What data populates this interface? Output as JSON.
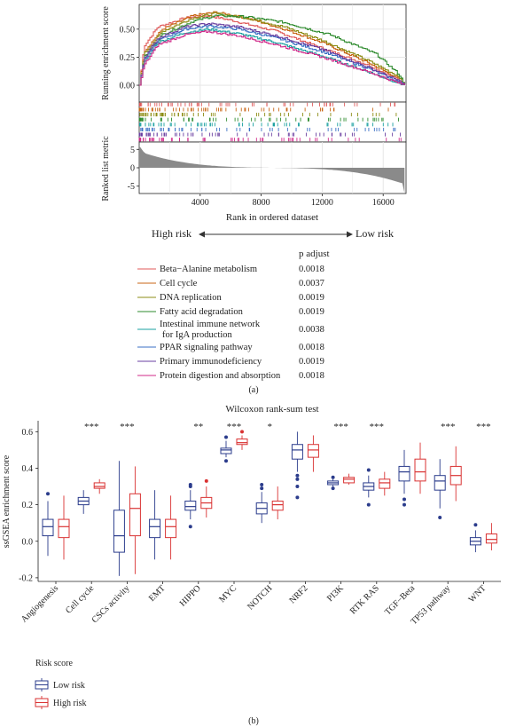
{
  "panel_a": {
    "caption": "(a)",
    "high_risk_label": "High risk",
    "low_risk_label": "Low risk",
    "legend_header": "p adjust",
    "colors": {
      "high": "#d42a2a",
      "low": "#3a6fc4",
      "arrow": "#333333",
      "bar": "#8a8a8a"
    },
    "chart_data": [
      {
        "type": "line",
        "ylabel": "Running enrichment score",
        "yticks": [
          0.0,
          0.25,
          0.5
        ],
        "ylim": [
          -0.15,
          0.72
        ],
        "xlim": [
          0,
          17500
        ],
        "grid": true,
        "series": [
          {
            "name": "Beta−Alanine metabolism",
            "color": "#e05a5a",
            "x": [
              0,
              300,
              1200,
              3000,
              4500,
              6000,
              9000,
              12000,
              15000,
              17000,
              17400
            ],
            "y": [
              0.0,
              0.35,
              0.52,
              0.6,
              0.62,
              0.58,
              0.48,
              0.33,
              0.18,
              0.05,
              0.0
            ]
          },
          {
            "name": "Cell cycle",
            "color": "#c86414",
            "x": [
              0,
              300,
              1500,
              3500,
              5000,
              7000,
              9500,
              12000,
              15000,
              17000,
              17400
            ],
            "y": [
              0.0,
              0.3,
              0.5,
              0.62,
              0.65,
              0.6,
              0.5,
              0.38,
              0.2,
              0.06,
              0.0
            ]
          },
          {
            "name": "DNA replication",
            "color": "#8c8c14",
            "x": [
              0,
              300,
              1500,
              3500,
              5000,
              7000,
              9500,
              12000,
              15000,
              17000,
              17400
            ],
            "y": [
              0.0,
              0.28,
              0.48,
              0.6,
              0.64,
              0.6,
              0.52,
              0.4,
              0.22,
              0.08,
              0.0
            ]
          },
          {
            "name": "Fatty acid degradation",
            "color": "#2e8b2e",
            "x": [
              0,
              300,
              1500,
              3500,
              5000,
              7000,
              9500,
              12500,
              15500,
              17000,
              17400
            ],
            "y": [
              0.0,
              0.25,
              0.45,
              0.57,
              0.62,
              0.61,
              0.56,
              0.45,
              0.28,
              0.1,
              0.0
            ]
          },
          {
            "name": "Intestinal immune network for IgA production",
            "color": "#1aa0a0",
            "x": [
              0,
              300,
              1200,
              3000,
              4500,
              6500,
              9000,
              12000,
              15000,
              17000,
              17400
            ],
            "y": [
              0.0,
              0.2,
              0.38,
              0.47,
              0.5,
              0.46,
              0.38,
              0.26,
              0.12,
              0.02,
              0.0
            ]
          },
          {
            "name": "PPAR signaling pathway",
            "color": "#3a6fc4",
            "x": [
              0,
              300,
              1200,
              3000,
              4500,
              6500,
              9000,
              12000,
              15000,
              17000,
              17400
            ],
            "y": [
              0.0,
              0.22,
              0.4,
              0.5,
              0.53,
              0.5,
              0.42,
              0.3,
              0.15,
              0.03,
              0.0
            ]
          },
          {
            "name": "Primary immunodeficiency",
            "color": "#6a3fa0",
            "x": [
              0,
              300,
              1200,
              3000,
              4500,
              6500,
              9000,
              12000,
              15000,
              17000,
              17400
            ],
            "y": [
              0.0,
              0.24,
              0.42,
              0.52,
              0.55,
              0.52,
              0.44,
              0.32,
              0.16,
              0.04,
              0.0
            ]
          },
          {
            "name": "Protein digestion and absorption",
            "color": "#d02a8a",
            "x": [
              0,
              300,
              1200,
              3000,
              4500,
              6500,
              9000,
              12000,
              15000,
              17000,
              17400
            ],
            "y": [
              0.0,
              0.18,
              0.36,
              0.45,
              0.48,
              0.44,
              0.36,
              0.25,
              0.12,
              0.02,
              0.0
            ]
          }
        ]
      },
      {
        "type": "area",
        "xlabel": "Rank in ordered dataset",
        "ylabel": "Ranked list metric",
        "xticks": [
          4000,
          8000,
          12000,
          16000
        ],
        "yticks": [
          5,
          0,
          -5
        ],
        "ylim": [
          -7,
          7
        ],
        "xlim": [
          0,
          17500
        ]
      }
    ],
    "legend": [
      {
        "name": "Beta−Alanine metabolism",
        "padj": "0.0018"
      },
      {
        "name": "Cell cycle",
        "padj": "0.0037"
      },
      {
        "name": "DNA replication",
        "padj": "0.0019"
      },
      {
        "name": "Fatty acid degradation",
        "padj": "0.0019"
      },
      {
        "name": "Intestinal immune network",
        "name2": "for IgA production",
        "padj": "0.0038"
      },
      {
        "name": "PPAR signaling pathway",
        "padj": "0.0018"
      },
      {
        "name": "Primary immunodeficiency",
        "padj": "0.0019"
      },
      {
        "name": "Protein digestion and absorption",
        "padj": "0.0018"
      }
    ]
  },
  "panel_b": {
    "caption": "(b)",
    "legend_title": "Risk score",
    "chart_data": {
      "type": "box",
      "title": "Wilcoxon rank-sum test",
      "ylabel": "ssGSEA enrichment score",
      "ylim": [
        -0.22,
        0.66
      ],
      "yticks": [
        -0.2,
        0.0,
        0.2,
        0.4,
        0.6
      ],
      "categories": [
        "Angiogenesis",
        "Cell cycle",
        "CSCs activity",
        "EMT",
        "HIPPO",
        "MYC",
        "NOTCH",
        "NRF2",
        "PI3K",
        "RTK RAS",
        "TGF−Beta",
        "TP53 pathway",
        "WNT"
      ],
      "significance": [
        "",
        "***",
        "***",
        "",
        "**",
        "***",
        "*",
        "",
        "***",
        "***",
        "",
        "***",
        "***"
      ],
      "series": [
        {
          "name": "Low risk",
          "color": "#2b3c8c",
          "boxes": [
            {
              "min": -0.08,
              "q1": 0.03,
              "median": 0.08,
              "q3": 0.12,
              "max": 0.22,
              "outliers": [
                0.26
              ]
            },
            {
              "min": 0.15,
              "q1": 0.2,
              "median": 0.22,
              "q3": 0.24,
              "max": 0.28,
              "outliers": []
            },
            {
              "min": -0.19,
              "q1": -0.06,
              "median": 0.03,
              "q3": 0.17,
              "max": 0.44,
              "outliers": []
            },
            {
              "min": -0.1,
              "q1": 0.02,
              "median": 0.08,
              "q3": 0.12,
              "max": 0.28,
              "outliers": []
            },
            {
              "min": 0.12,
              "q1": 0.17,
              "median": 0.19,
              "q3": 0.22,
              "max": 0.28,
              "outliers": [
                0.08,
                0.3,
                0.31
              ]
            },
            {
              "min": 0.46,
              "q1": 0.48,
              "median": 0.5,
              "q3": 0.51,
              "max": 0.55,
              "outliers": [
                0.44,
                0.57
              ]
            },
            {
              "min": 0.1,
              "q1": 0.15,
              "median": 0.18,
              "q3": 0.21,
              "max": 0.27,
              "outliers": [
                0.29,
                0.31
              ]
            },
            {
              "min": 0.38,
              "q1": 0.45,
              "median": 0.5,
              "q3": 0.53,
              "max": 0.6,
              "outliers": [
                0.24,
                0.3,
                0.34,
                0.36
              ]
            },
            {
              "min": 0.3,
              "q1": 0.31,
              "median": 0.32,
              "q3": 0.33,
              "max": 0.34,
              "outliers": [
                0.29,
                0.35
              ]
            },
            {
              "min": 0.24,
              "q1": 0.28,
              "median": 0.3,
              "q3": 0.32,
              "max": 0.36,
              "outliers": [
                0.2,
                0.39
              ]
            },
            {
              "min": 0.26,
              "q1": 0.33,
              "median": 0.38,
              "q3": 0.41,
              "max": 0.5,
              "outliers": [
                0.2,
                0.23
              ]
            },
            {
              "min": 0.18,
              "q1": 0.28,
              "median": 0.33,
              "q3": 0.36,
              "max": 0.45,
              "outliers": [
                0.13
              ]
            },
            {
              "min": -0.06,
              "q1": -0.02,
              "median": 0.0,
              "q3": 0.02,
              "max": 0.06,
              "outliers": [
                0.09
              ]
            }
          ]
        },
        {
          "name": "High risk",
          "color": "#d93232",
          "boxes": [
            {
              "min": -0.1,
              "q1": 0.02,
              "median": 0.08,
              "q3": 0.12,
              "max": 0.25,
              "outliers": []
            },
            {
              "min": 0.26,
              "q1": 0.29,
              "median": 0.3,
              "q3": 0.32,
              "max": 0.34,
              "outliers": []
            },
            {
              "min": -0.18,
              "q1": 0.03,
              "median": 0.18,
              "q3": 0.26,
              "max": 0.41,
              "outliers": []
            },
            {
              "min": -0.1,
              "q1": 0.02,
              "median": 0.08,
              "q3": 0.12,
              "max": 0.25,
              "outliers": []
            },
            {
              "min": 0.13,
              "q1": 0.18,
              "median": 0.21,
              "q3": 0.24,
              "max": 0.3,
              "outliers": [
                0.33
              ]
            },
            {
              "min": 0.5,
              "q1": 0.53,
              "median": 0.54,
              "q3": 0.56,
              "max": 0.58,
              "outliers": [
                0.6
              ]
            },
            {
              "min": 0.12,
              "q1": 0.17,
              "median": 0.2,
              "q3": 0.22,
              "max": 0.3,
              "outliers": []
            },
            {
              "min": 0.38,
              "q1": 0.46,
              "median": 0.5,
              "q3": 0.53,
              "max": 0.58,
              "outliers": []
            },
            {
              "min": 0.31,
              "q1": 0.32,
              "median": 0.34,
              "q3": 0.35,
              "max": 0.37,
              "outliers": []
            },
            {
              "min": 0.25,
              "q1": 0.29,
              "median": 0.32,
              "q3": 0.34,
              "max": 0.38,
              "outliers": []
            },
            {
              "min": 0.26,
              "q1": 0.33,
              "median": 0.38,
              "q3": 0.45,
              "max": 0.54,
              "outliers": []
            },
            {
              "min": 0.22,
              "q1": 0.31,
              "median": 0.36,
              "q3": 0.41,
              "max": 0.52,
              "outliers": []
            },
            {
              "min": -0.05,
              "q1": -0.01,
              "median": 0.01,
              "q3": 0.04,
              "max": 0.1,
              "outliers": []
            }
          ]
        }
      ]
    }
  }
}
